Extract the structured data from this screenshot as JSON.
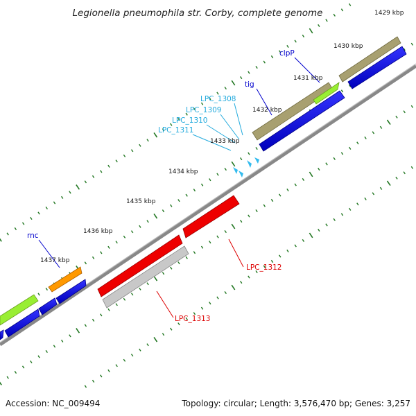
{
  "title": "Legionella pneumophila str. Corby, complete genome",
  "footer": {
    "accession": "Accession: NC_009494",
    "summary": "Topology: circular; Length: 3,576,470 bp; Genes: 3,257"
  },
  "ticks": [
    "1429 kbp",
    "1430 kbp",
    "1431 kbp",
    "1432 kbp",
    "1433 kbp",
    "1434 kbp",
    "1435 kbp",
    "1436 kbp",
    "1437 kbp"
  ],
  "genes": {
    "clpP": "clpP",
    "tig": "tig",
    "lpc1308": "LPC_1308",
    "lpc1309": "LPC_1309",
    "lpc1310": "LPC_1310",
    "lpc1311": "LPC_1311",
    "rnc": "rnc",
    "lpc1312": "LPC_1312",
    "lpc1313": "LPC_1313"
  },
  "colors": {
    "backbone": "#888888",
    "cds": "#0000dd",
    "gene_forward": "#a8a070",
    "gene_reverse": "#ee0000",
    "gene_gray": "#c0c0c0",
    "trna": "#33bbee",
    "green": "#99ee33",
    "orange": "#ff9900",
    "label_blue": "#0000cc",
    "label_cyan": "#22aadd",
    "label_red": "#dd0000",
    "tick": "#227722"
  }
}
